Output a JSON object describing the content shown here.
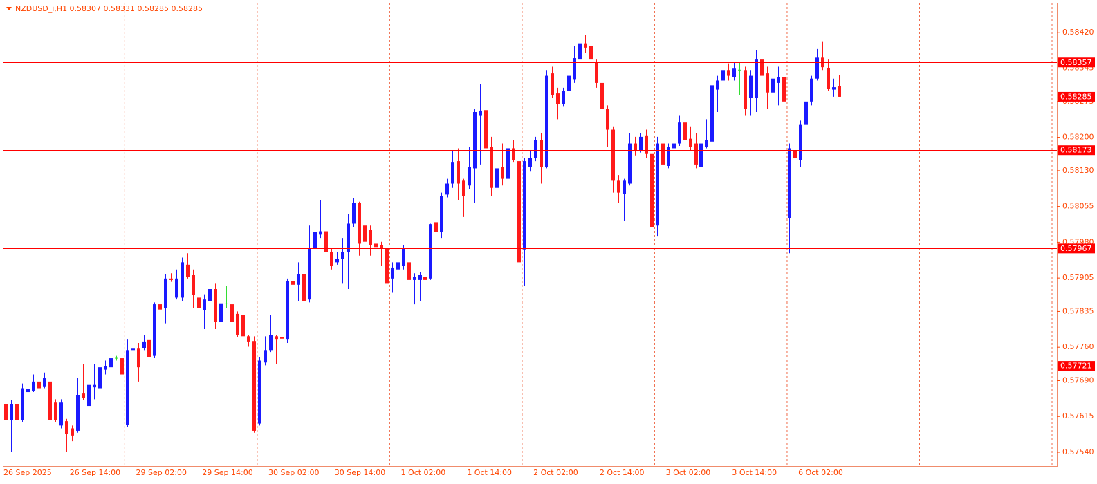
{
  "chart_data": {
    "type": "candlestick",
    "title": "NZDUSD_i,H1  0.58307 0.58331 0.58285 0.58285",
    "categories": [
      "26 Sep 2025",
      null,
      null,
      null,
      null,
      null,
      null,
      null,
      null,
      null,
      null,
      null,
      "26 Sep 14:00",
      null,
      null,
      null,
      null,
      null,
      null,
      null,
      null,
      null,
      null,
      null,
      "29 Sep 02:00",
      null,
      null,
      null,
      null,
      null,
      null,
      null,
      null,
      null,
      null,
      null,
      "29 Sep 14:00",
      null,
      null,
      null,
      null,
      null,
      null,
      null,
      null,
      null,
      null,
      null,
      "30 Sep 02:00",
      null,
      null,
      null,
      null,
      null,
      null,
      null,
      null,
      null,
      null,
      null,
      "30 Sep 14:00",
      null,
      null,
      null,
      null,
      null,
      null,
      null,
      null,
      null,
      null,
      null,
      "1 Oct 02:00",
      null,
      null,
      null,
      null,
      null,
      null,
      null,
      null,
      null,
      null,
      null,
      "1 Oct 14:00",
      null,
      null,
      null,
      null,
      null,
      null,
      null,
      null,
      null,
      null,
      null,
      "2 Oct 02:00",
      null,
      null,
      null,
      null,
      null,
      null,
      null,
      null,
      null,
      null,
      null,
      "2 Oct 14:00",
      null,
      null,
      null,
      null,
      null,
      null,
      null,
      null,
      null,
      null,
      null,
      "3 Oct 02:00",
      null,
      null,
      null,
      null,
      null,
      null,
      null,
      null,
      null,
      null,
      null,
      "3 Oct 14:00",
      null,
      null,
      null,
      null,
      null,
      null,
      null,
      null,
      null,
      null,
      null,
      "6 Oct 02:00",
      null,
      null,
      null,
      null,
      null,
      null,
      null
    ],
    "open": [
      0.57641,
      0.57607,
      0.5764,
      0.57607,
      0.57666,
      0.57669,
      0.57688,
      0.57678,
      0.57688,
      0.57644,
      0.57596,
      0.57605,
      0.5759,
      0.57585,
      0.57663,
      0.57637,
      0.57676,
      0.57674,
      0.57713,
      0.57718,
      0.57737,
      0.57737,
      0.57597,
      0.57754,
      0.57757,
      0.57758,
      0.57775,
      0.57742,
      0.5785,
      0.57842,
      0.57904,
      0.57864,
      0.57864,
      0.57933,
      0.57911,
      0.57864,
      0.57838,
      0.57857,
      0.57882,
      0.57813,
      0.57851,
      0.5785,
      0.5783,
      0.57827,
      0.57783,
      0.57773,
      0.576,
      0.57728,
      0.57754,
      0.57783,
      0.57781,
      0.57776,
      0.57898,
      0.57891,
      0.57913,
      0.5786,
      0.57967,
      0.57996,
      0.58003,
      0.57959,
      0.57938,
      0.57945,
      0.57959,
      0.58019,
      0.58062,
      0.58015,
      0.58006,
      0.57977,
      0.57974,
      0.57967,
      0.57904,
      0.57923,
      0.5793,
      0.57938,
      0.57901,
      0.57901,
      0.57908,
      0.57904,
      0.58022,
      0.58001,
      0.5808,
      0.58103,
      0.5815,
      0.58109,
      0.58099,
      0.58135,
      0.58245,
      0.58257,
      0.5818,
      0.58094,
      0.58138,
      0.58113,
      0.58177,
      0.5815,
      0.57965,
      0.58138,
      0.58157,
      0.58194,
      0.58138,
      0.58334,
      0.58292,
      0.5827,
      0.58297,
      0.58322,
      0.58363,
      0.58397,
      0.58392,
      0.58358,
      0.58314,
      0.5826,
      0.58216,
      0.58109,
      0.58081,
      0.58103,
      0.58187,
      0.58172,
      0.58204,
      0.58165,
      0.58015,
      0.58187,
      0.5814,
      0.58177,
      0.58187,
      0.58231,
      0.58197,
      0.58187,
      0.58138,
      0.5818,
      0.58191,
      0.583,
      0.58319,
      0.58341,
      0.58326,
      0.58341,
      0.58341,
      0.58282,
      0.58282,
      0.58363,
      0.58334,
      0.58294,
      0.58314,
      0.58326,
      0.5803,
      0.58172,
      0.58153,
      0.58226,
      0.58275,
      0.58323,
      0.58367,
      0.58345,
      0.583,
      0.58307
    ],
    "high": [
      0.57651,
      0.57649,
      0.57644,
      0.57684,
      0.57688,
      0.57703,
      0.57706,
      0.57707,
      0.57695,
      0.57651,
      0.57651,
      0.5761,
      0.57596,
      0.57695,
      0.57725,
      0.57688,
      0.57725,
      0.57728,
      0.57732,
      0.5775,
      0.57742,
      0.57747,
      0.57776,
      0.57769,
      0.57769,
      0.57786,
      0.57783,
      0.57854,
      0.5786,
      0.57913,
      0.57915,
      0.57923,
      0.57948,
      0.57957,
      0.57923,
      0.57886,
      0.57871,
      0.57901,
      0.57893,
      0.57864,
      0.57889,
      0.57857,
      0.57835,
      0.5783,
      0.57786,
      0.57783,
      0.57739,
      0.57783,
      0.57827,
      0.57786,
      0.57786,
      0.57904,
      0.57938,
      0.57938,
      0.57933,
      0.58015,
      0.58025,
      0.58069,
      0.58011,
      0.57967,
      0.57959,
      0.57989,
      0.5804,
      0.58072,
      0.58065,
      0.58019,
      0.58015,
      0.57981,
      0.57981,
      0.57971,
      0.57938,
      0.57952,
      0.57974,
      0.57945,
      0.57915,
      0.57918,
      0.57915,
      0.58019,
      0.5804,
      0.58084,
      0.58113,
      0.58172,
      0.58177,
      0.58113,
      0.5818,
      0.5826,
      0.58311,
      0.58297,
      0.58201,
      0.58157,
      0.58187,
      0.58201,
      0.58194,
      0.58157,
      0.58157,
      0.58172,
      0.58201,
      0.58209,
      0.58341,
      0.58348,
      0.58304,
      0.58304,
      0.58341,
      0.58392,
      0.58429,
      0.58414,
      0.58402,
      0.58363,
      0.58319,
      0.58267,
      0.58223,
      0.58121,
      0.58113,
      0.58209,
      0.58201,
      0.58209,
      0.58216,
      0.58172,
      0.58201,
      0.58194,
      0.58187,
      0.58201,
      0.58245,
      0.58241,
      0.58223,
      0.58209,
      0.58206,
      0.58238,
      0.58319,
      0.58329,
      0.58344,
      0.58355,
      0.58358,
      0.58358,
      0.58348,
      0.58341,
      0.58382,
      0.5837,
      0.58348,
      0.58329,
      0.58348,
      0.58334,
      0.58187,
      0.58182,
      0.58235,
      0.58282,
      0.58329,
      0.58385,
      0.584,
      0.58363,
      0.58323,
      0.58331
    ],
    "low": [
      0.576,
      0.57541,
      0.57603,
      0.57603,
      0.57663,
      0.57666,
      0.57666,
      0.57674,
      0.57571,
      0.57603,
      0.5759,
      0.57541,
      0.57563,
      0.57581,
      0.57649,
      0.5763,
      0.57651,
      0.57666,
      0.57703,
      0.57713,
      0.57732,
      0.57695,
      0.57593,
      0.57732,
      0.57688,
      0.57754,
      0.57688,
      0.57737,
      0.57835,
      0.5781,
      0.57897,
      0.5786,
      0.57857,
      0.57904,
      0.57842,
      0.57835,
      0.57798,
      0.57835,
      0.57798,
      0.57798,
      0.57842,
      0.57805,
      0.57781,
      0.57776,
      0.57761,
      0.57581,
      0.57596,
      0.57722,
      0.5775,
      0.57725,
      0.57769,
      0.57769,
      0.57857,
      0.57857,
      0.57842,
      0.57854,
      0.57886,
      0.57989,
      0.57945,
      0.57923,
      0.57933,
      0.57893,
      0.57882,
      0.58011,
      0.57952,
      0.57959,
      0.57952,
      0.57957,
      0.5793,
      0.57879,
      0.57874,
      0.57915,
      0.57923,
      0.57886,
      0.5785,
      0.57857,
      0.57864,
      0.57901,
      0.57989,
      0.57989,
      0.58074,
      0.58094,
      0.58069,
      0.58033,
      0.58091,
      0.58062,
      0.58143,
      0.58135,
      0.58077,
      0.5808,
      0.58099,
      0.58106,
      0.58147,
      0.57935,
      0.57889,
      0.58128,
      0.5815,
      0.58103,
      0.58135,
      0.58282,
      0.58238,
      0.58264,
      0.58289,
      0.58314,
      0.58355,
      0.58377,
      0.58355,
      0.58304,
      0.58253,
      0.5818,
      0.58084,
      0.58062,
      0.58025,
      0.58099,
      0.58162,
      0.58168,
      0.58157,
      0.58003,
      0.57992,
      0.58135,
      0.58135,
      0.58143,
      0.58182,
      0.58187,
      0.58172,
      0.58135,
      0.58133,
      0.58177,
      0.58185,
      0.58253,
      0.58297,
      0.58319,
      0.58319,
      0.58289,
      0.58245,
      0.58245,
      0.58253,
      0.58282,
      0.5826,
      0.58282,
      0.58267,
      0.58267,
      0.57957,
      0.58124,
      0.58138,
      0.58223,
      0.58267,
      0.58319,
      0.58341,
      0.58297,
      0.58285,
      0.58285
    ],
    "close": [
      0.57607,
      0.5764,
      0.57607,
      0.57674,
      0.57672,
      0.57688,
      0.57674,
      0.57695,
      0.57607,
      0.57607,
      0.57644,
      0.57578,
      0.57575,
      0.57659,
      0.57654,
      0.57681,
      0.57681,
      0.57718,
      0.5772,
      0.57737,
      0.57737,
      0.57703,
      0.57754,
      0.57757,
      0.57718,
      0.57772,
      0.57739,
      0.5785,
      0.57839,
      0.57904,
      0.57901,
      0.57904,
      0.57938,
      0.57908,
      0.57869,
      0.57842,
      0.5786,
      0.57882,
      0.57813,
      0.57852,
      0.57851,
      0.57813,
      0.57786,
      0.57783,
      0.57772,
      0.57585,
      0.57732,
      0.57754,
      0.57786,
      0.57776,
      0.57778,
      0.57898,
      0.57891,
      0.57913,
      0.57857,
      0.57967,
      0.58001,
      0.58003,
      0.57959,
      0.5793,
      0.57945,
      0.57959,
      0.58019,
      0.58062,
      0.57977,
      0.57981,
      0.57974,
      0.5797,
      0.57967,
      0.57893,
      0.57927,
      0.57938,
      0.57967,
      0.57901,
      0.57908,
      0.57911,
      0.57901,
      0.58018,
      0.58001,
      0.58077,
      0.58103,
      0.58147,
      0.58103,
      0.58077,
      0.58138,
      0.58253,
      0.58256,
      0.58177,
      0.58094,
      0.58135,
      0.58113,
      0.58177,
      0.58153,
      0.57938,
      0.5815,
      0.58156,
      0.58194,
      0.58138,
      0.58329,
      0.58289,
      0.5827,
      0.58297,
      0.58329,
      0.58366,
      0.58397,
      0.58388,
      0.58363,
      0.58314,
      0.5826,
      0.58216,
      0.58109,
      0.58084,
      0.58109,
      0.58187,
      0.58172,
      0.58201,
      0.58165,
      0.58011,
      0.58187,
      0.58143,
      0.5818,
      0.58187,
      0.58231,
      0.58194,
      0.5818,
      0.58143,
      0.58187,
      0.58194,
      0.58309,
      0.58319,
      0.58341,
      0.58329,
      0.58344,
      0.58341,
      0.5826,
      0.58329,
      0.58363,
      0.58329,
      0.58294,
      0.58323,
      0.58326,
      0.58275,
      0.58177,
      0.58157,
      0.58226,
      0.58275,
      0.58323,
      0.58367,
      0.58347,
      0.58301,
      0.58305,
      0.58285
    ],
    "up_color": "#1a1aff",
    "down_color": "#ff1a1a",
    "doji_color": "#33dd33",
    "level_color": "#ff0000",
    "levels": [
      0.58357,
      0.58173,
      0.57967,
      0.57721
    ],
    "current_price": 0.58285,
    "ylim": [
      0.57511,
      0.58482
    ],
    "yticks": [
      {
        "value": 0.5842,
        "label": "0.58420"
      },
      0.58345,
      0.58275,
      {
        "value": 0.582,
        "label": "0.58200"
      },
      {
        "value": 0.5813,
        "label": "0.58130"
      },
      0.58055,
      {
        "value": 0.5798,
        "label": "0.57980"
      },
      0.57905,
      0.57835,
      {
        "value": 0.5776,
        "label": "0.57760"
      },
      {
        "value": 0.5769,
        "label": "0.57690"
      },
      0.57615,
      {
        "value": 0.5754,
        "label": "0.57540"
      }
    ]
  }
}
